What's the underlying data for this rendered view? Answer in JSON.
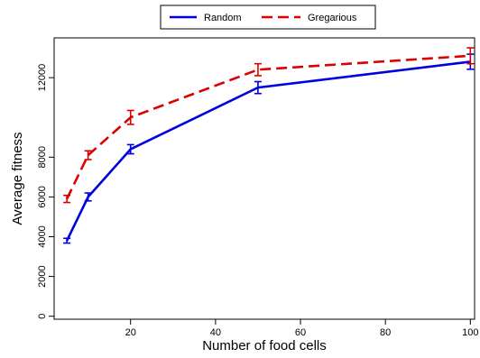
{
  "chart_data": {
    "type": "line",
    "title": "",
    "xlabel": "Number of food cells",
    "ylabel": "Average fitness",
    "x": [
      5,
      10,
      20,
      50,
      100
    ],
    "xlim": [
      2,
      101
    ],
    "ylim": [
      -150,
      14000
    ],
    "xticks": [
      20,
      40,
      60,
      80,
      100
    ],
    "yticks": [
      0,
      2000,
      4000,
      6000,
      8000,
      12000
    ],
    "grid": false,
    "legend_position": "top-center",
    "series": [
      {
        "name": "Random",
        "color": "#0000dd",
        "dash": "solid",
        "values": [
          3800,
          6000,
          8400,
          11500,
          12800
        ],
        "errors": [
          120,
          200,
          230,
          300,
          380
        ]
      },
      {
        "name": "Gregarious",
        "color": "#dd0000",
        "dash": "dashed",
        "values": [
          5900,
          8100,
          10000,
          12400,
          13100
        ],
        "errors": [
          180,
          220,
          350,
          300,
          400
        ]
      }
    ]
  }
}
